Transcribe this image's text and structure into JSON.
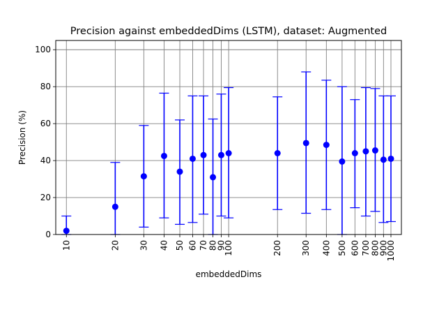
{
  "chart_data": {
    "type": "scatter",
    "title": "Precision against embeddedDims (LSTM), dataset: Augmented",
    "xlabel": "embeddedDims",
    "ylabel": "Precision (%)",
    "x_scale": "log",
    "xlim": [
      8.6,
      1160
    ],
    "ylim": [
      0,
      105
    ],
    "grid": true,
    "x_ticks": [
      10,
      20,
      30,
      40,
      50,
      60,
      70,
      80,
      90,
      100,
      200,
      300,
      400,
      500,
      600,
      700,
      800,
      900,
      1000
    ],
    "x_tick_labels": [
      "10",
      "20",
      "30",
      "40",
      "50",
      "60",
      "70",
      "80",
      "90",
      "100",
      "200",
      "300",
      "400",
      "500",
      "600",
      "700",
      "800",
      "900",
      "1000"
    ],
    "y_ticks": [
      0,
      20,
      40,
      60,
      80,
      100
    ],
    "y_tick_labels": [
      "0",
      "20",
      "40",
      "60",
      "80",
      "100"
    ],
    "series": [
      {
        "color": "#0000ff",
        "points": [
          {
            "x": 10,
            "y": 2,
            "low": 0,
            "high": 10
          },
          {
            "x": 20,
            "y": 15,
            "low": 0,
            "high": 39
          },
          {
            "x": 30,
            "y": 31.5,
            "low": 4,
            "high": 59
          },
          {
            "x": 40,
            "y": 42.5,
            "low": 9,
            "high": 76.5
          },
          {
            "x": 50,
            "y": 34,
            "low": 5.5,
            "high": 62
          },
          {
            "x": 60,
            "y": 41,
            "low": 6.5,
            "high": 75
          },
          {
            "x": 70,
            "y": 43,
            "low": 11,
            "high": 75
          },
          {
            "x": 80,
            "y": 31,
            "low": 0,
            "high": 62.5
          },
          {
            "x": 90,
            "y": 43,
            "low": 10,
            "high": 76
          },
          {
            "x": 100,
            "y": 44,
            "low": 9,
            "high": 79.5
          },
          {
            "x": 200,
            "y": 44,
            "low": 13.5,
            "high": 74.5
          },
          {
            "x": 300,
            "y": 49.5,
            "low": 11.5,
            "high": 88
          },
          {
            "x": 400,
            "y": 48.5,
            "low": 13.5,
            "high": 83.5
          },
          {
            "x": 500,
            "y": 39.5,
            "low": 0,
            "high": 80
          },
          {
            "x": 600,
            "y": 44,
            "low": 14.5,
            "high": 73
          },
          {
            "x": 700,
            "y": 45,
            "low": 10,
            "high": 79.5
          },
          {
            "x": 800,
            "y": 45.5,
            "low": 12.5,
            "high": 79
          },
          {
            "x": 900,
            "y": 40.5,
            "low": 6.5,
            "high": 75
          },
          {
            "x": 1000,
            "y": 41,
            "low": 7,
            "high": 75
          }
        ]
      }
    ]
  }
}
